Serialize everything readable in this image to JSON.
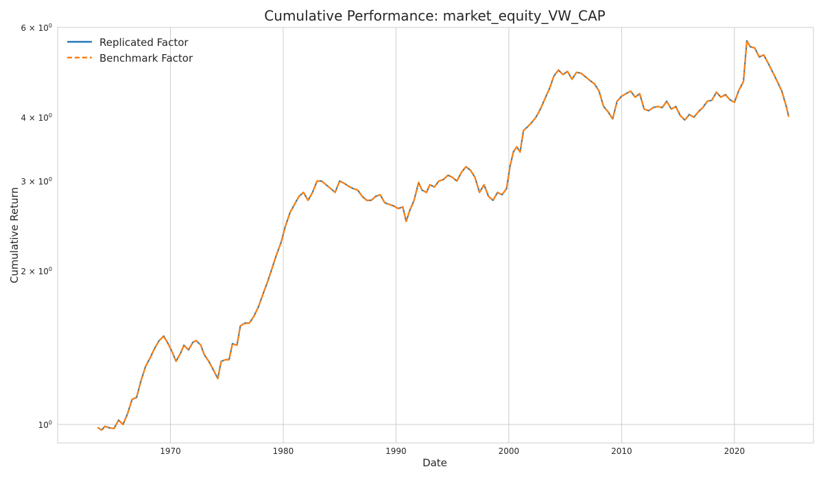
{
  "chart_data": {
    "type": "line",
    "title": "Cumulative Performance: market_equity_VW_CAP",
    "xlabel": "Date",
    "ylabel": "Cumulative Return",
    "xlim": [
      1960.0,
      2027.0
    ],
    "ylim": [
      0.92,
      6.0
    ],
    "yscale": "log",
    "grid": true,
    "legend_position": "top-left",
    "x_ticks": [
      1970,
      1980,
      1990,
      2000,
      2010,
      2020
    ],
    "y_ticks": [
      {
        "value": 1,
        "mantissa": "",
        "exp": "0"
      },
      {
        "value": 2,
        "mantissa": "2",
        "exp": "0"
      },
      {
        "value": 3,
        "mantissa": "3",
        "exp": "0"
      },
      {
        "value": 4,
        "mantissa": "4",
        "exp": "0"
      },
      {
        "value": 6,
        "mantissa": "6",
        "exp": "0"
      }
    ],
    "series": [
      {
        "name": "Replicated Factor",
        "color": "#1f77b4",
        "style": "solid",
        "x": [
          1963.6,
          1963.9,
          1964.2,
          1964.6,
          1965.0,
          1965.4,
          1965.8,
          1966.2,
          1966.6,
          1967.0,
          1967.4,
          1967.8,
          1968.2,
          1968.6,
          1969.0,
          1969.4,
          1969.8,
          1970.2,
          1970.5,
          1970.9,
          1971.2,
          1971.6,
          1972.0,
          1972.3,
          1972.7,
          1973.0,
          1973.4,
          1973.8,
          1974.2,
          1974.5,
          1974.9,
          1975.2,
          1975.5,
          1975.9,
          1976.2,
          1976.6,
          1977.0,
          1977.4,
          1977.8,
          1978.2,
          1978.6,
          1979.0,
          1979.4,
          1979.8,
          1980.2,
          1980.6,
          1981.0,
          1981.4,
          1981.8,
          1982.2,
          1982.6,
          1983.0,
          1983.4,
          1983.8,
          1984.2,
          1984.6,
          1985.0,
          1985.4,
          1985.8,
          1986.2,
          1986.6,
          1987.0,
          1987.4,
          1987.8,
          1988.2,
          1988.6,
          1989.0,
          1989.4,
          1989.8,
          1990.2,
          1990.6,
          1990.9,
          1991.2,
          1991.6,
          1992.0,
          1992.3,
          1992.7,
          1993.0,
          1993.4,
          1993.8,
          1994.2,
          1994.6,
          1995.0,
          1995.4,
          1995.8,
          1996.2,
          1996.6,
          1997.0,
          1997.4,
          1997.8,
          1998.2,
          1998.6,
          1999.0,
          1999.4,
          1999.8,
          2000.1,
          2000.4,
          2000.7,
          2001.0,
          2001.3,
          2001.6,
          2002.0,
          2002.4,
          2002.8,
          2003.2,
          2003.6,
          2004.0,
          2004.4,
          2004.8,
          2005.2,
          2005.6,
          2006.0,
          2006.4,
          2006.8,
          2007.2,
          2007.6,
          2008.0,
          2008.4,
          2008.8,
          2009.2,
          2009.6,
          2010.0,
          2010.4,
          2010.8,
          2011.2,
          2011.6,
          2012.0,
          2012.4,
          2012.8,
          2013.2,
          2013.6,
          2014.0,
          2014.4,
          2014.8,
          2015.2,
          2015.6,
          2016.0,
          2016.4,
          2016.8,
          2017.2,
          2017.6,
          2018.0,
          2018.4,
          2018.8,
          2019.2,
          2019.6,
          2020.0,
          2020.4,
          2020.8,
          2021.1,
          2021.4,
          2021.8,
          2022.2,
          2022.6,
          2023.0,
          2023.4,
          2023.8,
          2024.2,
          2024.6,
          2024.8
        ],
        "y": [
          0.985,
          0.975,
          0.992,
          0.985,
          0.982,
          1.02,
          1.0,
          1.05,
          1.12,
          1.13,
          1.22,
          1.3,
          1.35,
          1.41,
          1.46,
          1.49,
          1.44,
          1.38,
          1.33,
          1.38,
          1.43,
          1.4,
          1.45,
          1.46,
          1.43,
          1.37,
          1.33,
          1.28,
          1.23,
          1.33,
          1.34,
          1.34,
          1.44,
          1.43,
          1.56,
          1.58,
          1.58,
          1.63,
          1.7,
          1.8,
          1.9,
          2.02,
          2.15,
          2.27,
          2.45,
          2.6,
          2.7,
          2.8,
          2.85,
          2.75,
          2.85,
          3.0,
          3.0,
          2.95,
          2.9,
          2.85,
          3.0,
          2.97,
          2.93,
          2.9,
          2.88,
          2.8,
          2.75,
          2.75,
          2.8,
          2.82,
          2.72,
          2.7,
          2.68,
          2.65,
          2.67,
          2.5,
          2.62,
          2.75,
          2.98,
          2.88,
          2.85,
          2.95,
          2.92,
          3.0,
          3.02,
          3.08,
          3.05,
          3.0,
          3.12,
          3.2,
          3.15,
          3.05,
          2.85,
          2.95,
          2.8,
          2.75,
          2.85,
          2.82,
          2.9,
          3.2,
          3.42,
          3.5,
          3.42,
          3.77,
          3.82,
          3.9,
          4.0,
          4.15,
          4.35,
          4.55,
          4.82,
          4.95,
          4.85,
          4.92,
          4.75,
          4.9,
          4.88,
          4.8,
          4.72,
          4.65,
          4.5,
          4.2,
          4.1,
          3.97,
          4.3,
          4.4,
          4.45,
          4.5,
          4.38,
          4.45,
          4.15,
          4.12,
          4.18,
          4.2,
          4.18,
          4.3,
          4.15,
          4.2,
          4.03,
          3.95,
          4.05,
          4.0,
          4.1,
          4.18,
          4.3,
          4.32,
          4.48,
          4.38,
          4.43,
          4.33,
          4.28,
          4.52,
          4.7,
          5.65,
          5.5,
          5.47,
          5.25,
          5.3,
          5.1,
          4.9,
          4.7,
          4.5,
          4.2,
          4.02
        ],
        "line_width": 2.2
      },
      {
        "name": "Benchmark Factor",
        "color": "#ff7f0e",
        "style": "dashed",
        "x": [
          1963.6,
          1963.9,
          1964.2,
          1964.6,
          1965.0,
          1965.4,
          1965.8,
          1966.2,
          1966.6,
          1967.0,
          1967.4,
          1967.8,
          1968.2,
          1968.6,
          1969.0,
          1969.4,
          1969.8,
          1970.2,
          1970.5,
          1970.9,
          1971.2,
          1971.6,
          1972.0,
          1972.3,
          1972.7,
          1973.0,
          1973.4,
          1973.8,
          1974.2,
          1974.5,
          1974.9,
          1975.2,
          1975.5,
          1975.9,
          1976.2,
          1976.6,
          1977.0,
          1977.4,
          1977.8,
          1978.2,
          1978.6,
          1979.0,
          1979.4,
          1979.8,
          1980.2,
          1980.6,
          1981.0,
          1981.4,
          1981.8,
          1982.2,
          1982.6,
          1983.0,
          1983.4,
          1983.8,
          1984.2,
          1984.6,
          1985.0,
          1985.4,
          1985.8,
          1986.2,
          1986.6,
          1987.0,
          1987.4,
          1987.8,
          1988.2,
          1988.6,
          1989.0,
          1989.4,
          1989.8,
          1990.2,
          1990.6,
          1990.9,
          1991.2,
          1991.6,
          1992.0,
          1992.3,
          1992.7,
          1993.0,
          1993.4,
          1993.8,
          1994.2,
          1994.6,
          1995.0,
          1995.4,
          1995.8,
          1996.2,
          1996.6,
          1997.0,
          1997.4,
          1997.8,
          1998.2,
          1998.6,
          1999.0,
          1999.4,
          1999.8,
          2000.1,
          2000.4,
          2000.7,
          2001.0,
          2001.3,
          2001.6,
          2002.0,
          2002.4,
          2002.8,
          2003.2,
          2003.6,
          2004.0,
          2004.4,
          2004.8,
          2005.2,
          2005.6,
          2006.0,
          2006.4,
          2006.8,
          2007.2,
          2007.6,
          2008.0,
          2008.4,
          2008.8,
          2009.2,
          2009.6,
          2010.0,
          2010.4,
          2010.8,
          2011.2,
          2011.6,
          2012.0,
          2012.4,
          2012.8,
          2013.2,
          2013.6,
          2014.0,
          2014.4,
          2014.8,
          2015.2,
          2015.6,
          2016.0,
          2016.4,
          2016.8,
          2017.2,
          2017.6,
          2018.0,
          2018.4,
          2018.8,
          2019.2,
          2019.6,
          2020.0,
          2020.4,
          2020.8,
          2021.1,
          2021.4,
          2021.8,
          2022.2,
          2022.6,
          2023.0,
          2023.4,
          2023.8,
          2024.2,
          2024.6,
          2024.8
        ],
        "y": [
          0.985,
          0.975,
          0.992,
          0.985,
          0.982,
          1.02,
          1.0,
          1.05,
          1.12,
          1.13,
          1.22,
          1.3,
          1.35,
          1.41,
          1.46,
          1.49,
          1.44,
          1.38,
          1.33,
          1.38,
          1.43,
          1.4,
          1.45,
          1.46,
          1.43,
          1.37,
          1.33,
          1.28,
          1.23,
          1.33,
          1.34,
          1.34,
          1.44,
          1.43,
          1.56,
          1.58,
          1.58,
          1.63,
          1.7,
          1.8,
          1.9,
          2.02,
          2.15,
          2.27,
          2.45,
          2.6,
          2.7,
          2.8,
          2.85,
          2.75,
          2.85,
          3.0,
          3.0,
          2.95,
          2.9,
          2.85,
          3.0,
          2.97,
          2.93,
          2.9,
          2.88,
          2.8,
          2.75,
          2.75,
          2.8,
          2.82,
          2.72,
          2.7,
          2.68,
          2.65,
          2.67,
          2.5,
          2.62,
          2.75,
          2.98,
          2.88,
          2.85,
          2.95,
          2.92,
          3.0,
          3.02,
          3.08,
          3.05,
          3.0,
          3.12,
          3.2,
          3.15,
          3.05,
          2.85,
          2.95,
          2.8,
          2.75,
          2.85,
          2.82,
          2.9,
          3.2,
          3.42,
          3.5,
          3.42,
          3.77,
          3.82,
          3.9,
          4.0,
          4.15,
          4.35,
          4.55,
          4.82,
          4.95,
          4.85,
          4.92,
          4.75,
          4.9,
          4.88,
          4.8,
          4.72,
          4.65,
          4.5,
          4.2,
          4.1,
          3.97,
          4.3,
          4.4,
          4.45,
          4.5,
          4.38,
          4.45,
          4.15,
          4.12,
          4.18,
          4.2,
          4.18,
          4.3,
          4.15,
          4.2,
          4.03,
          3.95,
          4.05,
          4.0,
          4.1,
          4.18,
          4.3,
          4.32,
          4.48,
          4.38,
          4.43,
          4.33,
          4.28,
          4.52,
          4.7,
          5.65,
          5.5,
          5.47,
          5.25,
          5.3,
          5.1,
          4.9,
          4.7,
          4.5,
          4.2,
          4.02
        ],
        "line_width": 2.2
      }
    ]
  }
}
